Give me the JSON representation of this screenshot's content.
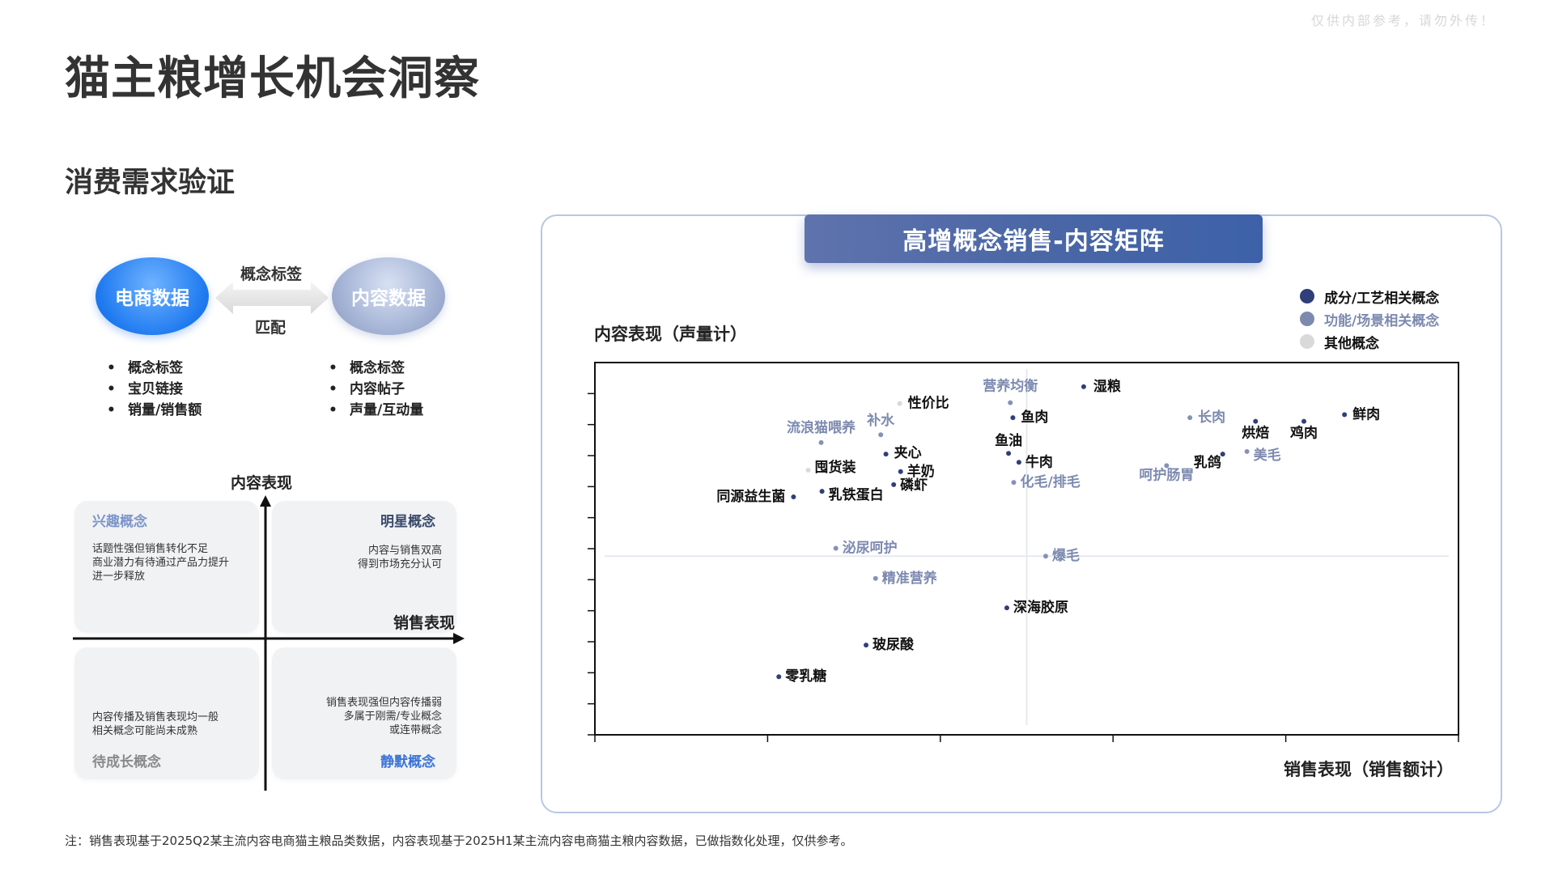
{
  "watermark": "仅供内部参考，请勿外传！",
  "page_title": "猫主粮增长机会洞察",
  "section_title": "消费需求验证",
  "flow": {
    "left_bubble": "电商数据",
    "right_bubble": "内容数据",
    "arrow_top_label": "概念标签",
    "arrow_bottom_label": "匹配",
    "left_items": [
      "概念标签",
      "宝贝链接",
      "销量/销售额"
    ],
    "right_items": [
      "概念标签",
      "内容帖子",
      "声量/互动量"
    ]
  },
  "quadrant": {
    "y_label": "内容表现",
    "x_label": "销售表现",
    "top_left": {
      "name": "兴趣概念",
      "desc": [
        "话题性强但销售转化不足",
        "商业潜力有待通过产品力提升",
        "进一步释放"
      ]
    },
    "top_right": {
      "name": "明星概念",
      "desc": [
        "内容与销售双高",
        "得到市场充分认可"
      ]
    },
    "bottom_left": {
      "name": "待成长概念",
      "desc": [
        "内容传播及销售表现均一般",
        "相关概念可能尚未成熟"
      ]
    },
    "bottom_right": {
      "name": "静默概念",
      "desc": [
        "销售表现强但内容传播弱",
        "多属于刚需/专业概念",
        "或连带概念"
      ]
    },
    "colors": {
      "interest": "#7d96c9",
      "star": "#3a4a6b",
      "growing": "#8a8a8a",
      "silent": "#3a73d6"
    }
  },
  "matrix": {
    "banner": "高增概念销售-内容矩阵",
    "y_axis_title": "内容表现（声量计）",
    "x_axis_title": "销售表现（销售额计）",
    "legend": [
      {
        "label": "成分/工艺相关概念",
        "color": "#2f3f7a"
      },
      {
        "label": "功能/场景相关概念",
        "color": "#7d8ab0"
      },
      {
        "label": "其他概念",
        "color": "#d9d9d9"
      }
    ]
  },
  "chart_data": {
    "type": "scatter",
    "title": "高增概念销售-内容矩阵",
    "xlabel": "销售表现（销售额计）",
    "ylabel": "内容表现（声量计）",
    "xlim": [
      0,
      100
    ],
    "ylim": [
      0,
      100
    ],
    "x_tick_count": 6,
    "y_tick_count": 12,
    "reference_lines": {
      "x": 50,
      "y": 48
    },
    "categories": {
      "ingredient": {
        "name": "成分/工艺相关概念",
        "color": "#2f3f7a",
        "label_color": "#111111"
      },
      "function": {
        "name": "功能/场景相关概念",
        "color": "#8592b6",
        "label_color": "#7d8ab0"
      },
      "other": {
        "name": "其他概念",
        "color": "#d9d9d9",
        "label_color": "#111111"
      }
    },
    "points": [
      {
        "label": "湿粮",
        "x": 56.6,
        "y": 93.5,
        "category": "ingredient"
      },
      {
        "label": "营养均衡",
        "x": 48.1,
        "y": 89.2,
        "category": "function"
      },
      {
        "label": "性价比",
        "x": 35.3,
        "y": 89.0,
        "category": "other"
      },
      {
        "label": "鱼肉",
        "x": 48.4,
        "y": 85.2,
        "category": "ingredient"
      },
      {
        "label": "长肉",
        "x": 68.9,
        "y": 85.2,
        "category": "function"
      },
      {
        "label": "鲜肉",
        "x": 86.8,
        "y": 86.0,
        "category": "ingredient"
      },
      {
        "label": "烘焙",
        "x": 76.5,
        "y": 84.2,
        "category": "ingredient"
      },
      {
        "label": "鸡肉",
        "x": 82.1,
        "y": 84.2,
        "category": "ingredient"
      },
      {
        "label": "流浪猫喂养",
        "x": 26.2,
        "y": 78.5,
        "category": "function"
      },
      {
        "label": "补水",
        "x": 33.1,
        "y": 80.6,
        "category": "function"
      },
      {
        "label": "鱼油",
        "x": 47.9,
        "y": 75.6,
        "category": "ingredient"
      },
      {
        "label": "夹心",
        "x": 33.7,
        "y": 75.4,
        "category": "ingredient"
      },
      {
        "label": "牛肉",
        "x": 49.1,
        "y": 73.2,
        "category": "ingredient"
      },
      {
        "label": "乳鸽",
        "x": 72.7,
        "y": 75.4,
        "category": "ingredient"
      },
      {
        "label": "美毛",
        "x": 75.5,
        "y": 76.1,
        "category": "function"
      },
      {
        "label": "囤货装",
        "x": 24.7,
        "y": 71.1,
        "category": "other"
      },
      {
        "label": "羊奶",
        "x": 35.4,
        "y": 70.7,
        "category": "ingredient"
      },
      {
        "label": "呵护肠胃",
        "x": 66.2,
        "y": 72.3,
        "category": "function"
      },
      {
        "label": "磷虾",
        "x": 34.6,
        "y": 67.2,
        "category": "ingredient"
      },
      {
        "label": "化毛/排毛",
        "x": 48.5,
        "y": 67.8,
        "category": "function"
      },
      {
        "label": "同源益生菌",
        "x": 23.0,
        "y": 63.9,
        "category": "ingredient"
      },
      {
        "label": "乳铁蛋白",
        "x": 26.3,
        "y": 65.4,
        "category": "ingredient"
      },
      {
        "label": "泌尿呵护",
        "x": 27.9,
        "y": 50.1,
        "category": "function"
      },
      {
        "label": "爆毛",
        "x": 52.2,
        "y": 48.0,
        "category": "function"
      },
      {
        "label": "精准营养",
        "x": 32.5,
        "y": 42.0,
        "category": "function"
      },
      {
        "label": "深海胶原",
        "x": 47.7,
        "y": 34.1,
        "category": "ingredient"
      },
      {
        "label": "玻尿酸",
        "x": 31.4,
        "y": 24.1,
        "category": "ingredient"
      },
      {
        "label": "零乳糖",
        "x": 21.3,
        "y": 15.6,
        "category": "ingredient"
      }
    ]
  },
  "footnote": "注：销售表现基于2025Q2某主流内容电商猫主粮品类数据，内容表现基于2025H1某主流内容电商猫主粮内容数据，已做指数化处理，仅供参考。"
}
